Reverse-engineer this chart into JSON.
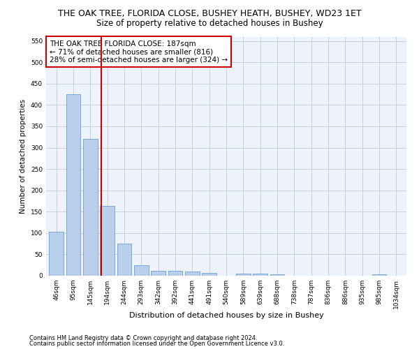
{
  "title": "THE OAK TREE, FLORIDA CLOSE, BUSHEY HEATH, BUSHEY, WD23 1ET",
  "subtitle": "Size of property relative to detached houses in Bushey",
  "xlabel": "Distribution of detached houses by size in Bushey",
  "ylabel": "Number of detached properties",
  "categories": [
    "46sqm",
    "95sqm",
    "145sqm",
    "194sqm",
    "244sqm",
    "293sqm",
    "342sqm",
    "392sqm",
    "441sqm",
    "491sqm",
    "540sqm",
    "589sqm",
    "639sqm",
    "688sqm",
    "738sqm",
    "787sqm",
    "836sqm",
    "886sqm",
    "935sqm",
    "985sqm",
    "1034sqm"
  ],
  "values": [
    103,
    425,
    320,
    163,
    75,
    25,
    12,
    12,
    10,
    6,
    0,
    5,
    5,
    3,
    0,
    0,
    0,
    0,
    0,
    4,
    0
  ],
  "bar_color": "#b8ceea",
  "bar_edge_color": "#6a9fd8",
  "vline_x": 2.65,
  "vline_color": "#cc0000",
  "annotation_text": "THE OAK TREE FLORIDA CLOSE: 187sqm\n← 71% of detached houses are smaller (816)\n28% of semi-detached houses are larger (324) →",
  "annotation_box_color": "#ffffff",
  "annotation_box_edge_color": "#cc0000",
  "ylim": [
    0,
    560
  ],
  "yticks": [
    0,
    50,
    100,
    150,
    200,
    250,
    300,
    350,
    400,
    450,
    500,
    550
  ],
  "footer1": "Contains HM Land Registry data © Crown copyright and database right 2024.",
  "footer2": "Contains public sector information licensed under the Open Government Licence v3.0.",
  "background_color": "#eef2fa",
  "grid_color": "#c5cde0",
  "title_fontsize": 9,
  "subtitle_fontsize": 8.5,
  "annotation_fontsize": 7.5,
  "ylabel_fontsize": 7.5,
  "xlabel_fontsize": 8,
  "tick_fontsize": 6.5,
  "footer_fontsize": 6
}
